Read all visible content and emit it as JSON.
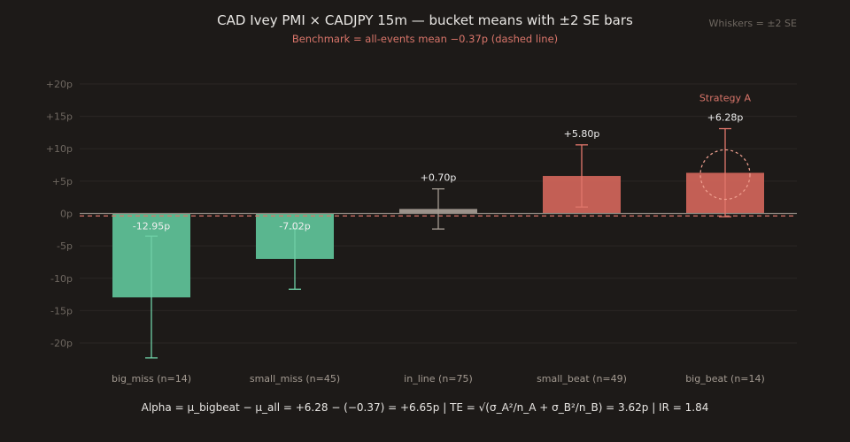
{
  "chart_data": {
    "type": "bar",
    "title": "CAD Ivey PMI × CADJPY 15m — bucket means with ±2 SE bars",
    "subtitle": "Benchmark = all-events mean −0.37p (dashed line)",
    "whisker_note": "Whiskers = ±2 SE",
    "categories": [
      "big_miss (n=14)",
      "small_miss (n=45)",
      "in_line (n=75)",
      "small_beat (n=49)",
      "big_beat (n=14)"
    ],
    "values": [
      -12.95,
      -7.02,
      0.7,
      5.8,
      6.28
    ],
    "value_labels": [
      "-12.95p",
      "-7.02p",
      "+0.70p",
      "+5.80p",
      "+6.28p"
    ],
    "error_low": [
      -22.3,
      -11.7,
      -2.4,
      1.0,
      -0.5
    ],
    "error_high": [
      -3.5,
      -2.4,
      3.8,
      10.6,
      13.1
    ],
    "benchmark": -0.37,
    "ylim": [
      -23,
      21.5
    ],
    "yticks": [
      20,
      15,
      10,
      5,
      0,
      -5,
      -10,
      -15,
      -20
    ],
    "ytick_labels": [
      "+20p",
      "+15p",
      "+10p",
      "+5p",
      "0p",
      "-5p",
      "-10p",
      "-15p",
      "-20p"
    ],
    "grid": true,
    "highlight": {
      "index": 4,
      "label": "Strategy A"
    },
    "footer": "Alpha = μ_bigbeat − μ_all = +6.28 − (−0.37) = +6.65p | TE = √(σ_A²/n_A + σ_B²/n_B) = 3.62p | IR = 1.84",
    "colors": {
      "background": "#1d1a18",
      "negative": "#5ebf96",
      "neutral": "#a39a91",
      "positive": "#cc6359",
      "benchmark": "#d9756a",
      "grid": "#2b2724",
      "tick_text": "#6e6760",
      "category_text": "#a39a91",
      "title_text": "#e8e6e3",
      "subtitle_text": "#d9756a",
      "label_text": "#eeeeee",
      "note_text": "#6e6760",
      "footer_text": "#e8e6e3"
    }
  }
}
